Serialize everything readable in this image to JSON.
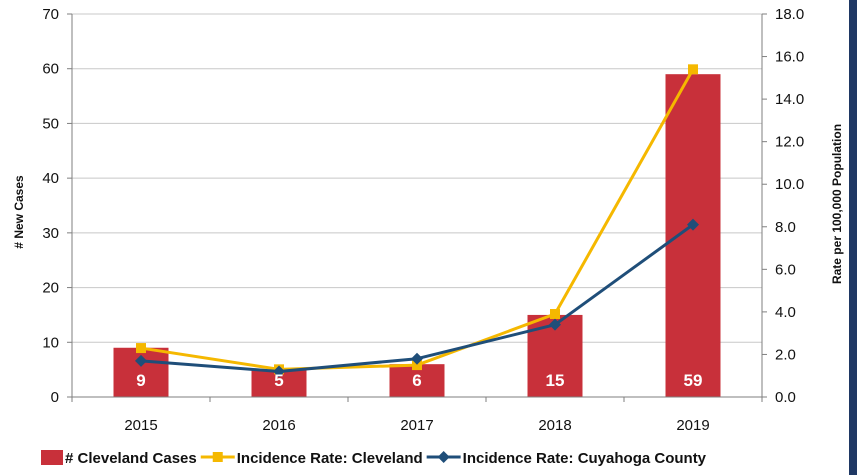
{
  "colors": {
    "bar": "#c8303a",
    "cleveland_line": "#f5b800",
    "county_line": "#1f4e79",
    "grid": "#c8c8c8",
    "frame": "#1f3864"
  },
  "chart_data": {
    "type": "bar",
    "categories": [
      "2015",
      "2016",
      "2017",
      "2018",
      "2019"
    ],
    "xlabel": "",
    "ylabel": "# New Cases",
    "y2label": "Rate per 100,000 Population",
    "ylim": [
      0,
      70
    ],
    "y2lim": [
      0,
      18
    ],
    "yticks": [
      "0",
      "10",
      "20",
      "30",
      "40",
      "50",
      "60",
      "70"
    ],
    "y2ticks": [
      "0.0",
      "2.0",
      "4.0",
      "6.0",
      "8.0",
      "10.0",
      "12.0",
      "14.0",
      "16.0",
      "18.0"
    ],
    "grid": true,
    "legend_position": "bottom",
    "series": [
      {
        "name": "# Cleveland Cases",
        "type": "bar",
        "axis": "left",
        "values": [
          9,
          5,
          6,
          15,
          59
        ],
        "labels": [
          "9",
          "5",
          "6",
          "15",
          "59"
        ]
      },
      {
        "name": "Incidence Rate: Cleveland",
        "type": "line",
        "axis": "right",
        "marker": "square",
        "values": [
          2.3,
          1.3,
          1.5,
          3.9,
          15.4
        ]
      },
      {
        "name": "Incidence Rate: Cuyahoga County",
        "type": "line",
        "axis": "right",
        "marker": "diamond",
        "values": [
          1.7,
          1.2,
          1.8,
          3.4,
          8.1
        ]
      }
    ]
  }
}
